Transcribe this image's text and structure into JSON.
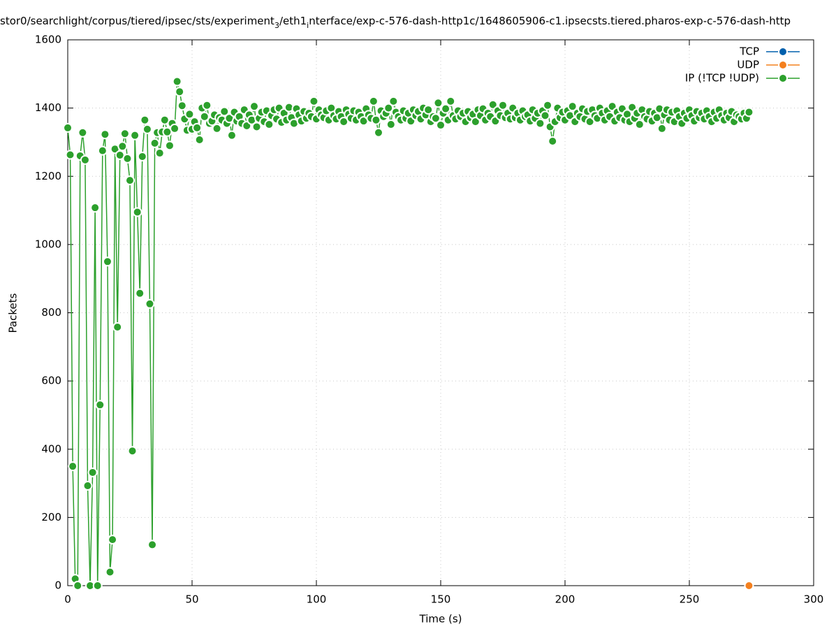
{
  "chart_data": {
    "type": "line",
    "title": [
      "stor0/searchlight/corpus/tiered/ipsec/sts/experiment",
      "3",
      "/eth1",
      "i",
      "nterface/exp-c-576-dash-http1c/1648605906-c1.ipsecsts.tiered.pharos-exp-c-576-dash-http"
    ],
    "x_label": "Time (s)",
    "y_label": "Packets",
    "xlim": [
      0,
      300
    ],
    "xticks": [
      0,
      50,
      100,
      150,
      200,
      250,
      300
    ],
    "ylim": [
      0,
      1600
    ],
    "yticks": [
      0,
      200,
      400,
      600,
      800,
      1000,
      1200,
      1400,
      1600
    ],
    "grid": true,
    "legend": "top-right",
    "series": [
      {
        "name": "TCP",
        "color": "#0060ad",
        "x": [],
        "values": []
      },
      {
        "name": "UDP",
        "color": "#f4801f",
        "x": [
          274
        ],
        "values": [
          0
        ]
      },
      {
        "name": "IP (!TCP  !UDP)",
        "color": "#2ca02c",
        "x": [
          0,
          1,
          2,
          3,
          4,
          5,
          6,
          7,
          8,
          9,
          10,
          11,
          12,
          13,
          14,
          15,
          16,
          17,
          18,
          19,
          20,
          21,
          22,
          23,
          24,
          25,
          26,
          27,
          28,
          29,
          30,
          31,
          32,
          33,
          34,
          35,
          36,
          37,
          38,
          39,
          40,
          41,
          42,
          43,
          44,
          45,
          46,
          47,
          48,
          49,
          50,
          51,
          52,
          53,
          54,
          55,
          56,
          57,
          58,
          59,
          60,
          61,
          62,
          63,
          64,
          65,
          66,
          67,
          68,
          69,
          70,
          71,
          72,
          73,
          74,
          75,
          76,
          77,
          78,
          79,
          80,
          81,
          82,
          83,
          84,
          85,
          86,
          87,
          88,
          89,
          90,
          91,
          92,
          93,
          94,
          95,
          96,
          97,
          98,
          99,
          100,
          101,
          102,
          103,
          104,
          105,
          106,
          107,
          108,
          109,
          110,
          111,
          112,
          113,
          114,
          115,
          116,
          117,
          118,
          119,
          120,
          121,
          122,
          123,
          124,
          125,
          126,
          127,
          128,
          129,
          130,
          131,
          132,
          133,
          134,
          135,
          136,
          137,
          138,
          139,
          140,
          141,
          142,
          143,
          144,
          145,
          146,
          147,
          148,
          149,
          150,
          151,
          152,
          153,
          154,
          155,
          156,
          157,
          158,
          159,
          160,
          161,
          162,
          163,
          164,
          165,
          166,
          167,
          168,
          169,
          170,
          171,
          172,
          173,
          174,
          175,
          176,
          177,
          178,
          179,
          180,
          181,
          182,
          183,
          184,
          185,
          186,
          187,
          188,
          189,
          190,
          191,
          192,
          193,
          194,
          195,
          196,
          197,
          198,
          199,
          200,
          201,
          202,
          203,
          204,
          205,
          206,
          207,
          208,
          209,
          210,
          211,
          212,
          213,
          214,
          215,
          216,
          217,
          218,
          219,
          220,
          221,
          222,
          223,
          224,
          225,
          226,
          227,
          228,
          229,
          230,
          231,
          232,
          233,
          234,
          235,
          236,
          237,
          238,
          239,
          240,
          241,
          242,
          243,
          244,
          245,
          246,
          247,
          248,
          249,
          250,
          251,
          252,
          253,
          254,
          255,
          256,
          257,
          258,
          259,
          260,
          261,
          262,
          263,
          264,
          265,
          266,
          267,
          268,
          269,
          270,
          271,
          272,
          273,
          274
        ],
        "values": [
          1342,
          1263,
          350,
          20,
          0,
          1260,
          1328,
          1248,
          293,
          0,
          332,
          1108,
          0,
          530,
          1275,
          1323,
          950,
          40,
          135,
          1280,
          758,
          1262,
          1288,
          1325,
          1252,
          1188,
          395,
          1320,
          1095,
          857,
          1258,
          1365,
          1338,
          826,
          120,
          1297,
          1328,
          1268,
          1330,
          1365,
          1330,
          1290,
          1355,
          1340,
          1478,
          1448,
          1407,
          1368,
          1335,
          1382,
          1338,
          1360,
          1342,
          1307,
          1400,
          1375,
          1408,
          1355,
          1362,
          1380,
          1340,
          1372,
          1365,
          1390,
          1355,
          1370,
          1320,
          1388,
          1362,
          1375,
          1355,
          1395,
          1348,
          1380,
          1365,
          1405,
          1345,
          1370,
          1388,
          1360,
          1392,
          1352,
          1378,
          1395,
          1368,
          1400,
          1358,
          1385,
          1365,
          1402,
          1372,
          1355,
          1398,
          1380,
          1362,
          1390,
          1370,
          1385,
          1375,
          1420,
          1368,
          1395,
          1380,
          1372,
          1392,
          1365,
          1400,
          1378,
          1368,
          1390,
          1375,
          1360,
          1395,
          1382,
          1370,
          1392,
          1365,
          1388,
          1375,
          1362,
          1398,
          1380,
          1370,
          1420,
          1365,
          1328,
          1392,
          1375,
          1385,
          1400,
          1352,
          1420,
          1388,
          1375,
          1365,
          1392,
          1370,
          1385,
          1362,
          1395,
          1378,
          1390,
          1368,
          1400,
          1380,
          1395,
          1360,
          1375,
          1370,
          1415,
          1350,
          1385,
          1398,
          1365,
          1420,
          1378,
          1368,
          1392,
          1375,
          1385,
          1360,
          1390,
          1372,
          1382,
          1360,
          1395,
          1378,
          1398,
          1365,
          1385,
          1375,
          1410,
          1362,
          1392,
          1378,
          1408,
          1372,
          1385,
          1368,
          1400,
          1372,
          1385,
          1365,
          1392,
          1375,
          1380,
          1362,
          1395,
          1370,
          1385,
          1355,
          1392,
          1378,
          1408,
          1345,
          1303,
          1360,
          1400,
          1372,
          1388,
          1365,
          1392,
          1378,
          1405,
          1360,
          1385,
          1375,
          1398,
          1368,
          1390,
          1360,
          1395,
          1378,
          1370,
          1400,
          1385,
          1365,
          1392,
          1375,
          1405,
          1362,
          1388,
          1372,
          1398,
          1365,
          1382,
          1360,
          1402,
          1370,
          1385,
          1352,
          1395,
          1375,
          1368,
          1390,
          1362,
          1385,
          1372,
          1398,
          1340,
          1380,
          1395,
          1365,
          1388,
          1360,
          1392,
          1375,
          1355,
          1385,
          1370,
          1395,
          1378,
          1362,
          1390,
          1372,
          1385,
          1368,
          1392,
          1375,
          1360,
          1388,
          1370,
          1395,
          1378,
          1365,
          1385,
          1372,
          1390,
          1360,
          1380,
          1375,
          1368,
          1385,
          1370,
          1388
        ]
      }
    ]
  }
}
